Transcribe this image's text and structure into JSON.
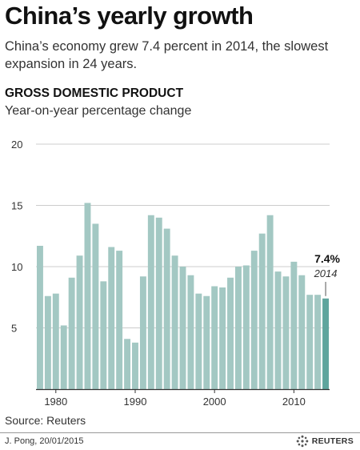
{
  "title": "China’s yearly growth",
  "subtitle": "China’s economy grew 7.4 percent in 2014, the slowest expansion in 24 years.",
  "section_title": "GROSS DOMESTIC PRODUCT",
  "section_subtitle": "Year-on-year percentage change",
  "source": "Source: Reuters",
  "credit": "J. Pong, 20/01/2015",
  "brand": "REUTERS",
  "chart_data": {
    "type": "bar",
    "x": [
      1978,
      1979,
      1980,
      1981,
      1982,
      1983,
      1984,
      1985,
      1986,
      1987,
      1988,
      1989,
      1990,
      1991,
      1992,
      1993,
      1994,
      1995,
      1996,
      1997,
      1998,
      1999,
      2000,
      2001,
      2002,
      2003,
      2004,
      2005,
      2006,
      2007,
      2008,
      2009,
      2010,
      2011,
      2012,
      2013,
      2014
    ],
    "values": [
      11.7,
      7.6,
      7.8,
      5.2,
      9.1,
      10.9,
      15.2,
      13.5,
      8.8,
      11.6,
      11.3,
      4.1,
      3.8,
      9.2,
      14.2,
      14.0,
      13.1,
      10.9,
      10.0,
      9.3,
      7.8,
      7.6,
      8.4,
      8.3,
      9.1,
      10.0,
      10.1,
      11.3,
      12.7,
      14.2,
      9.6,
      9.2,
      10.4,
      9.3,
      7.7,
      7.7,
      7.4
    ],
    "ylim": [
      0,
      20
    ],
    "yticks": [
      0,
      5,
      10,
      15,
      20
    ],
    "ytick_labels": [
      "",
      "5",
      "10",
      "15",
      "20"
    ],
    "xticks": [
      1980,
      1990,
      2000,
      2010
    ],
    "xtick_labels": [
      "1980",
      "1990",
      "2000",
      "2010"
    ],
    "grid": true,
    "colors": {
      "bar": "#a3c8c3",
      "highlight": "#5fa59d",
      "grid": "#cccccc",
      "axis": "#333333"
    },
    "annotation": {
      "year": 2014,
      "value_label": "7.4%",
      "year_label": "2014"
    }
  }
}
